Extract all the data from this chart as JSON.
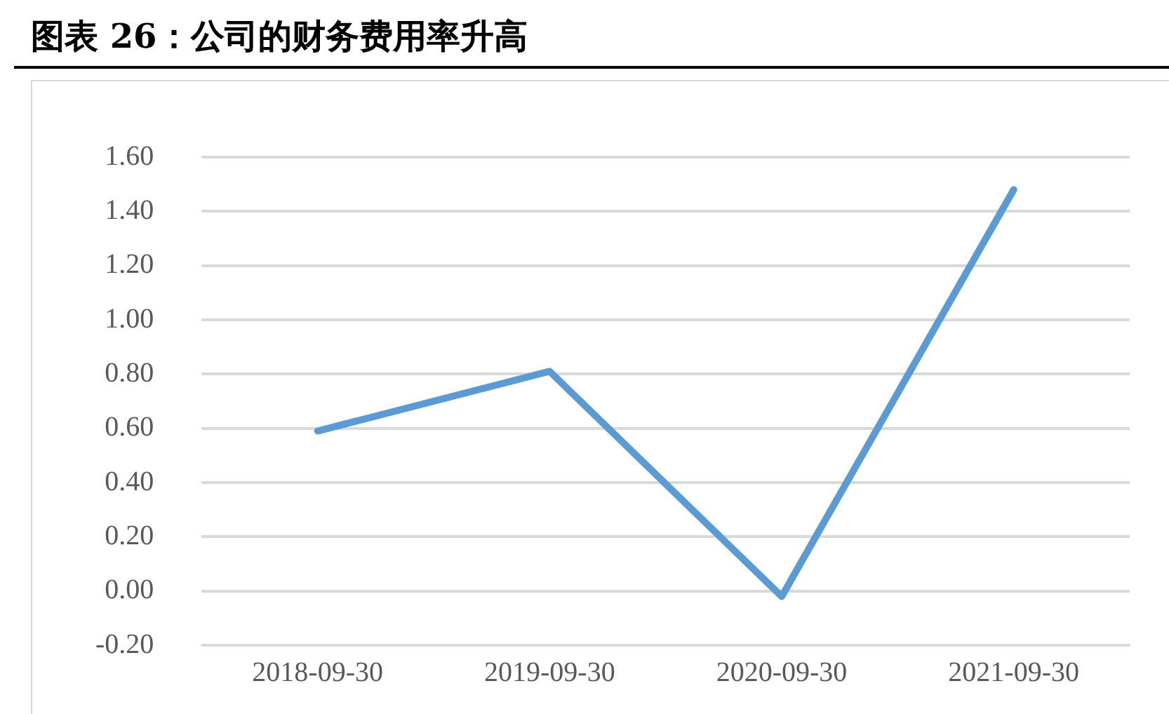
{
  "chart_data": {
    "type": "line",
    "title": "图表 26：公司的财务费用率升高",
    "categories": [
      "2018-09-30",
      "2019-09-30",
      "2020-09-30",
      "2021-09-30"
    ],
    "series": [
      {
        "color": "#5b9bd5",
        "values": [
          0.59,
          0.81,
          -0.02,
          1.48
        ]
      }
    ],
    "ylim": [
      -0.2,
      1.6
    ],
    "yticks": [
      {
        "value": -0.2,
        "label": "-0.20"
      },
      {
        "value": 0,
        "label": "0.00"
      },
      {
        "value": 0.2,
        "label": "0.20"
      },
      {
        "value": 0.4,
        "label": "0.40"
      },
      {
        "value": 0.6,
        "label": "0.60"
      },
      {
        "value": 0.8,
        "label": "0.80"
      },
      {
        "value": 1,
        "label": "1.00"
      },
      {
        "value": 1.2,
        "label": "1.20"
      },
      {
        "value": 1.4,
        "label": "1.40"
      },
      {
        "value": 1.6,
        "label": "1.60"
      }
    ],
    "grid": "y",
    "legend": false,
    "marker": "none",
    "line_style": "solid"
  }
}
